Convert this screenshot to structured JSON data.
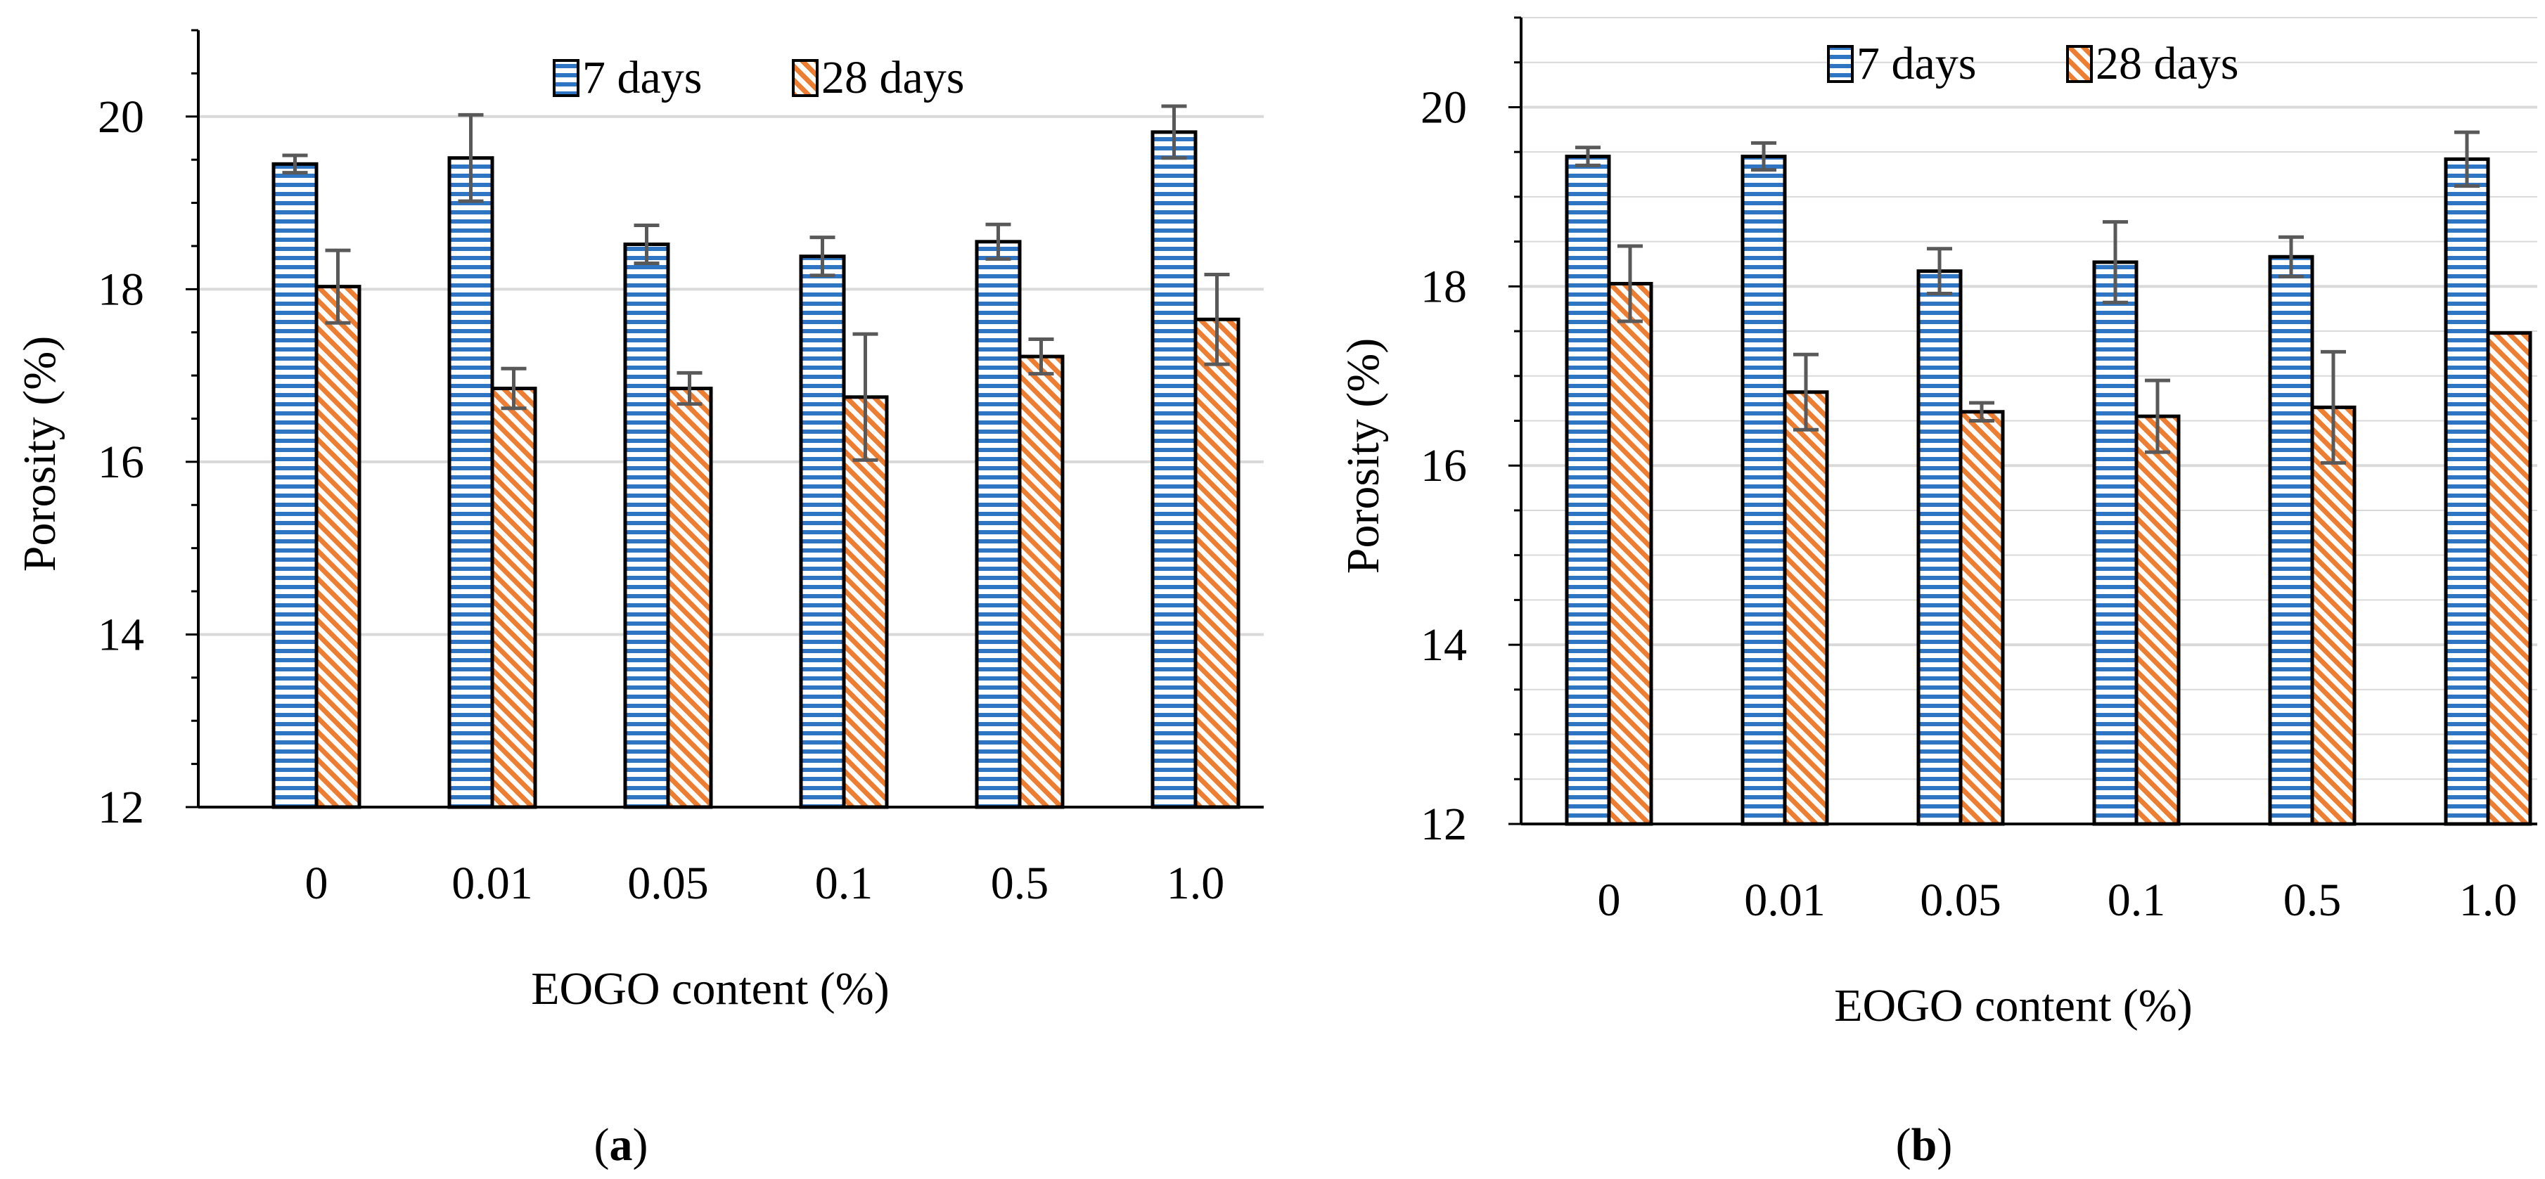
{
  "colors": {
    "series_7_stripe": "#2e75c4",
    "series_28_stripe": "#ed7d31",
    "bar_outline": "#000000",
    "gridline": "#d9d9d9",
    "error_bar": "#595959",
    "axis": "#000000"
  },
  "chart_data": [
    {
      "type": "bar",
      "caption_open": "(",
      "caption_letter": "a",
      "caption_close": ")",
      "xlabel": "EOGO content (%)",
      "ylabel": "Porosity (%)",
      "ylim": [
        12,
        21
      ],
      "yticks": [
        12,
        14,
        16,
        18,
        20
      ],
      "grid": true,
      "legend_position": "top-center",
      "categories": [
        "0",
        "0.01",
        "0.05",
        "0.1",
        "0.5",
        "1.0"
      ],
      "series": [
        {
          "name": "7 days",
          "pattern": "horizontal-stripes",
          "values": [
            19.45,
            19.52,
            18.52,
            18.38,
            18.55,
            19.82
          ],
          "errors": [
            0.1,
            0.5,
            0.22,
            0.22,
            0.2,
            0.3
          ]
        },
        {
          "name": "28 days",
          "pattern": "diagonal-stripes",
          "values": [
            18.03,
            16.85,
            16.85,
            16.75,
            17.22,
            17.65
          ],
          "errors": [
            0.42,
            0.23,
            0.18,
            0.73,
            0.2,
            0.52
          ]
        }
      ]
    },
    {
      "type": "bar",
      "caption_open": "(",
      "caption_letter": "b",
      "caption_close": ")",
      "xlabel": "EOGO content (%)",
      "ylabel": "Porosity (%)",
      "ylim": [
        12,
        21
      ],
      "yticks": [
        12,
        14,
        16,
        18,
        20
      ],
      "grid": true,
      "legend_position": "top-center",
      "categories": [
        "0",
        "0.01",
        "0.05",
        "0.1",
        "0.5",
        "1.0"
      ],
      "series": [
        {
          "name": "7 days",
          "pattern": "horizontal-stripes",
          "values": [
            19.45,
            19.45,
            18.17,
            18.27,
            18.33,
            19.42
          ],
          "errors": [
            0.1,
            0.15,
            0.25,
            0.45,
            0.22,
            0.3
          ]
        },
        {
          "name": "28 days",
          "pattern": "diagonal-stripes",
          "values": [
            18.03,
            16.82,
            16.6,
            16.55,
            16.65,
            17.48
          ],
          "errors": [
            0.42,
            0.42,
            0.1,
            0.4,
            0.62,
            0.0
          ]
        }
      ]
    }
  ]
}
